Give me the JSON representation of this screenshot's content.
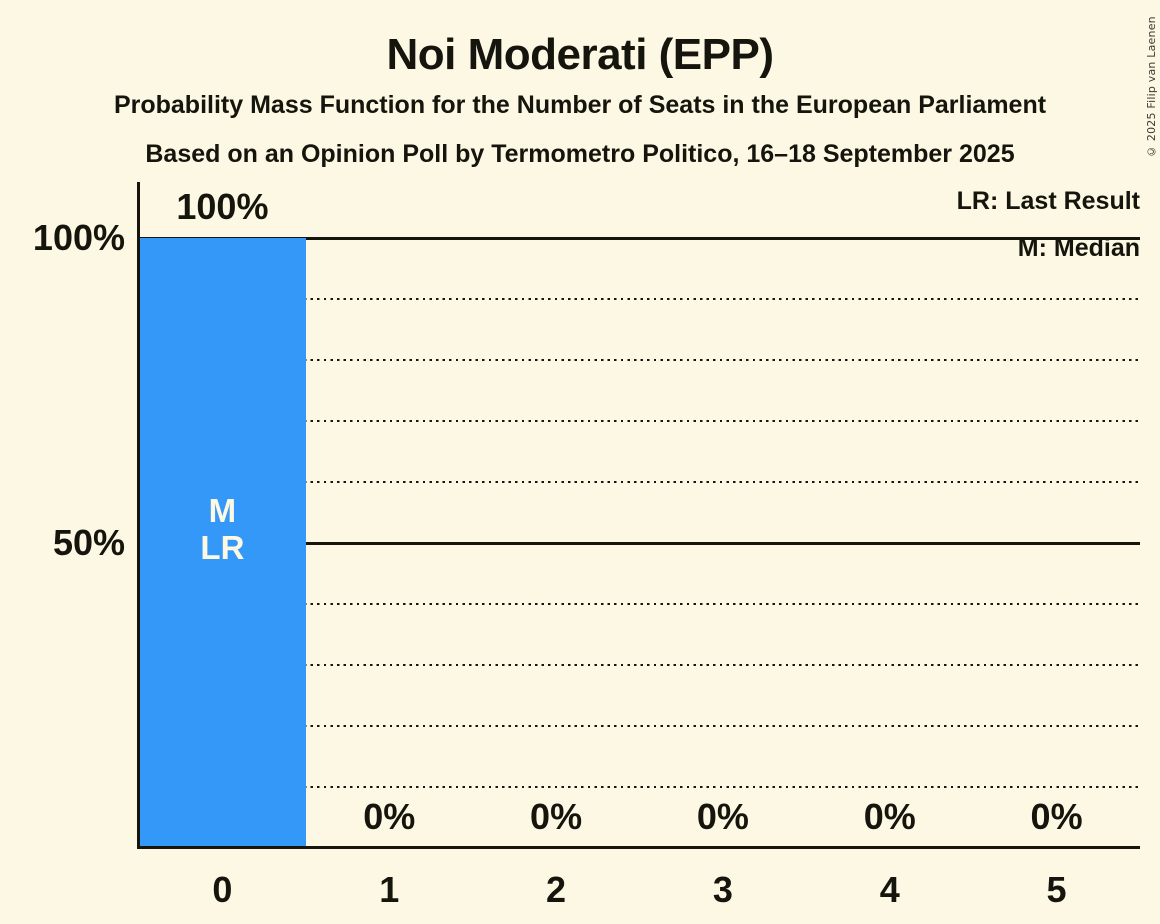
{
  "header": {
    "title": "Noi Moderati (EPP)",
    "subtitle1": "Probability Mass Function for the Number of Seats in the European Parliament",
    "subtitle2": "Based on an Opinion Poll by Termometro Politico, 16–18 September 2025"
  },
  "copyright": "© 2025 Filip van Laenen",
  "legend": {
    "lr": "LR: Last Result",
    "m": "M: Median"
  },
  "colors": {
    "background": "#FCF8E3",
    "bar": "#3498F8",
    "text": "#15150D",
    "bar_annotation_text": "#FCF8E3"
  },
  "chart_data": {
    "type": "bar",
    "title": "Noi Moderati (EPP)",
    "categories": [
      "0",
      "1",
      "2",
      "3",
      "4",
      "5"
    ],
    "values": [
      100,
      0,
      0,
      0,
      0,
      0
    ],
    "value_labels": [
      "100%",
      "0%",
      "0%",
      "0%",
      "0%",
      "0%"
    ],
    "ylim": [
      0,
      100
    ],
    "y_tick_labels": [
      {
        "pct": 100,
        "label": "100%"
      },
      {
        "pct": 50,
        "label": "50%"
      }
    ],
    "gridlines_pct": [
      10,
      20,
      30,
      40,
      50,
      60,
      70,
      80,
      90,
      100
    ],
    "solid_gridlines_pct": [
      50,
      100
    ],
    "grid_style": "dotted-horizontal",
    "legend_position": "top-right",
    "annotations": [
      {
        "category_index": 0,
        "lines": [
          "M",
          "LR"
        ]
      }
    ]
  }
}
